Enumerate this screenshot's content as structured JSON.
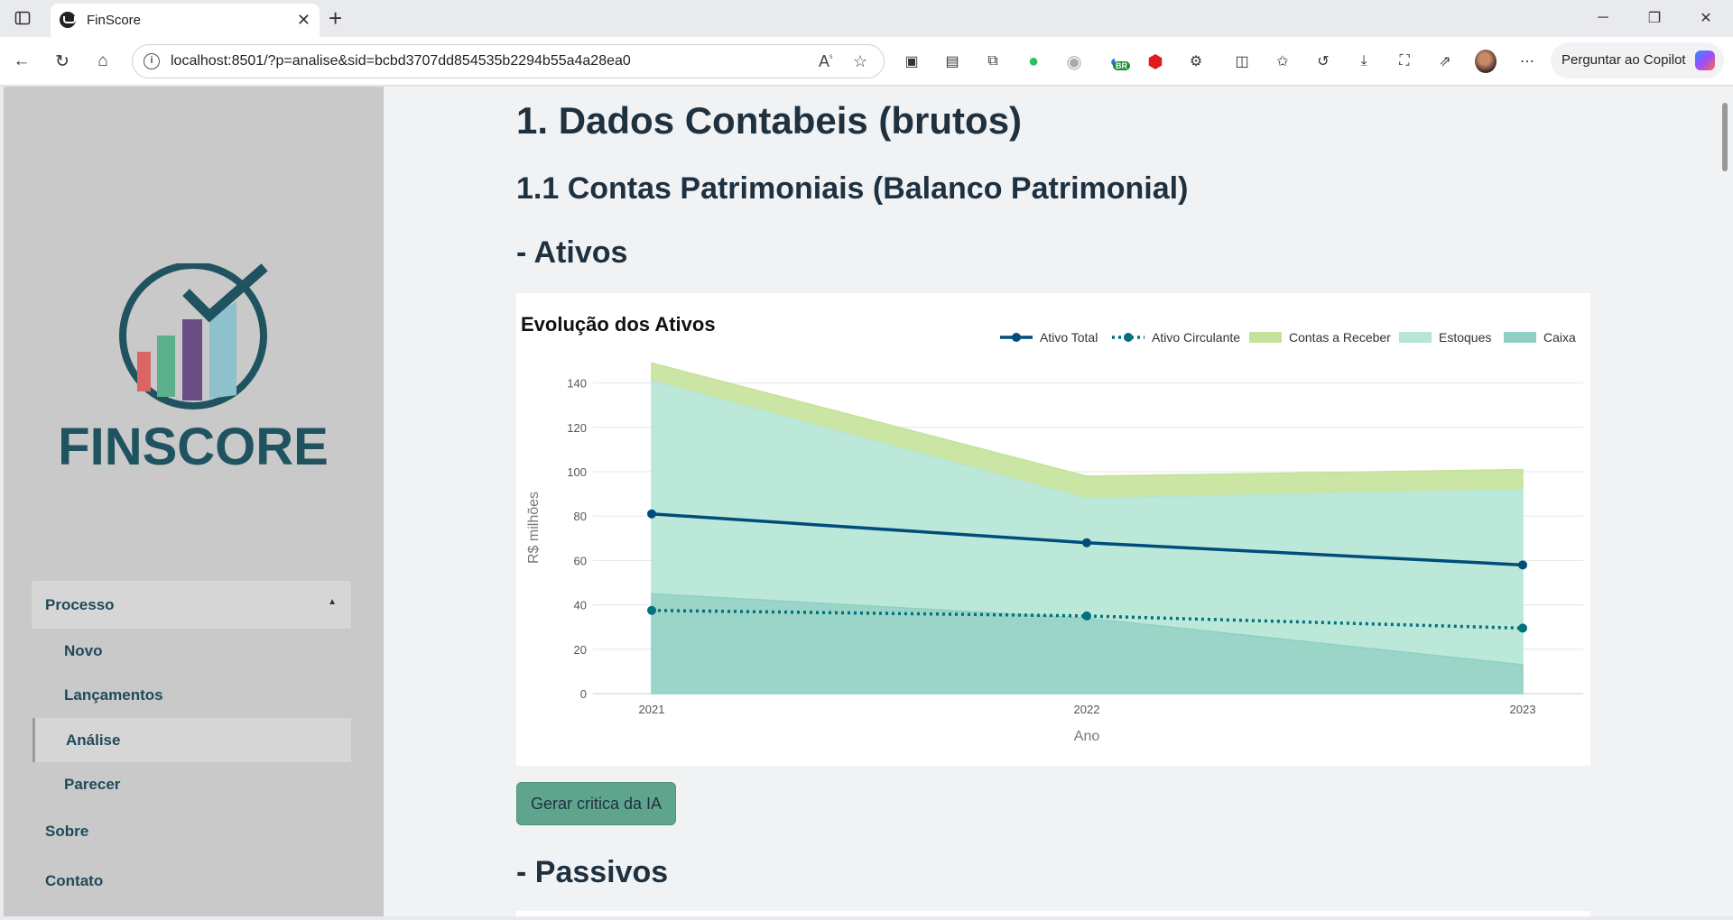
{
  "browser": {
    "tab_title": "FinScore",
    "url": "localhost:8501/?p=analise&sid=bcbd3707dd854535b2294b55a4a28ea0",
    "copilot_label": "Perguntar ao Copilot",
    "ext_badge": "BR"
  },
  "sidebar": {
    "logo_text": "FINSCORE",
    "menu_header": "Processo",
    "items": [
      {
        "label": "Novo"
      },
      {
        "label": "Lançamentos"
      },
      {
        "label": "Análise"
      },
      {
        "label": "Parecer"
      }
    ],
    "links": [
      {
        "label": "Sobre"
      },
      {
        "label": "Contato"
      }
    ],
    "logo_colors": {
      "ring": "#1f5360",
      "bar1": "#d96566",
      "bar2": "#5cb08c",
      "bar3": "#6a4f86",
      "bar4": "#8ec1cc"
    }
  },
  "main": {
    "title": "1. Dados Contabeis (brutos)",
    "section": "1.1 Contas Patrimoniais (Balanco Patrimonial)",
    "subsection_assets": "- Ativos",
    "ai_button": "Gerar critica da IA",
    "subsection_liabilities": "- Passivos"
  },
  "chart_data": {
    "type": "area",
    "title": "Evolução dos Ativos",
    "xlabel": "Ano",
    "ylabel": "R$ milhões",
    "x": [
      "2021",
      "2022",
      "2023"
    ],
    "yticks": [
      "0",
      "20",
      "40",
      "60",
      "80",
      "100",
      "120",
      "140"
    ],
    "ylim": [
      0,
      150
    ],
    "grid": true,
    "legend_position": "top-right",
    "series": [
      {
        "name": "Ativo Total",
        "kind": "line",
        "style": "solid",
        "color": "#004c7a",
        "values": [
          81,
          68,
          58
        ]
      },
      {
        "name": "Ativo Circulante",
        "kind": "line",
        "style": "dotted",
        "color": "#00727d",
        "values": [
          37.5,
          35,
          29.5
        ]
      },
      {
        "name": "Contas a Receber",
        "kind": "stacked-area",
        "color": "#c5e29a",
        "values": [
          8,
          10,
          9
        ]
      },
      {
        "name": "Estoques",
        "kind": "stacked-area",
        "color": "#b5e6d6",
        "values": [
          96,
          54,
          79
        ]
      },
      {
        "name": "Caixa",
        "kind": "stacked-area",
        "color": "#8fd0c2",
        "values": [
          45,
          34,
          13
        ]
      }
    ]
  }
}
